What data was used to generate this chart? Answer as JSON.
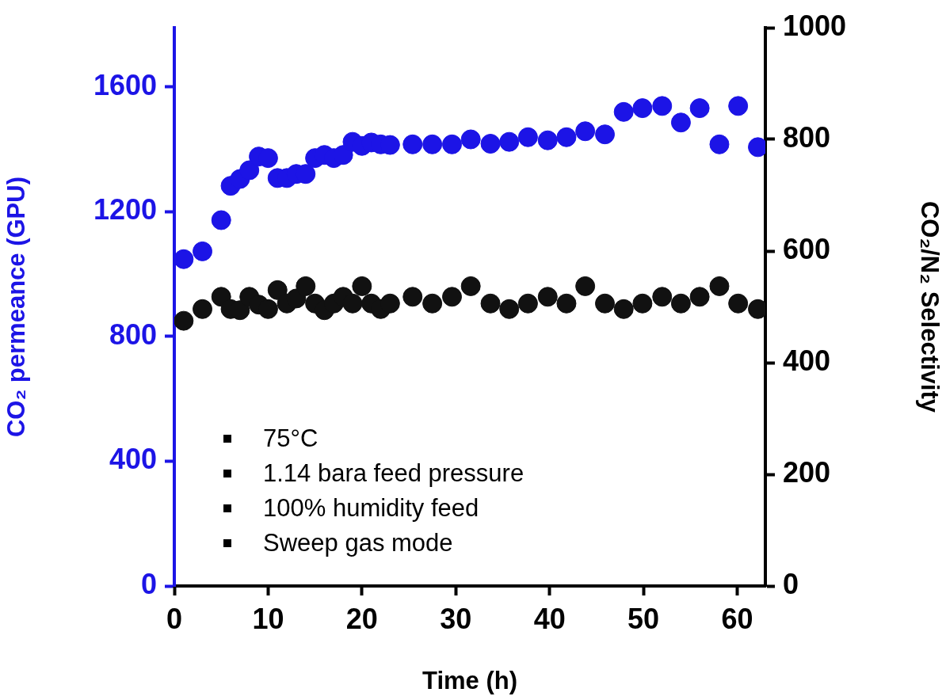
{
  "chart_data": {
    "type": "scatter",
    "xlabel": "Time (h)",
    "ylabel": "CO₂ permeance (GPU)",
    "y2label": "CO₂/N₂ Selectivity",
    "x": [
      1,
      3,
      5,
      6,
      7,
      8,
      9,
      10,
      11,
      12,
      13,
      14,
      15,
      16,
      17,
      18,
      19,
      20,
      21,
      22,
      23,
      25.4,
      27.5,
      29.6,
      31.6,
      33.7,
      35.7,
      37.7,
      39.8,
      41.8,
      43.8,
      45.9,
      47.9,
      49.9,
      52,
      54,
      56,
      58.1,
      60.1,
      62.2
    ],
    "series": [
      {
        "color": "#1c14e6",
        "values": [
          1048,
          1073,
          1173,
          1283,
          1305,
          1333,
          1377,
          1372,
          1308,
          1308,
          1321,
          1321,
          1372,
          1382,
          1372,
          1382,
          1424,
          1411,
          1422,
          1416,
          1414,
          1416,
          1416,
          1416,
          1432,
          1418,
          1424,
          1439,
          1429,
          1439,
          1458,
          1448,
          1520,
          1532,
          1539,
          1486,
          1532,
          1416,
          1539,
          1407
        ]
      },
      {
        "color": "#111111",
        "axis": "y2",
        "values": [
          475,
          496,
          518,
          496,
          494,
          518,
          504,
          496,
          530,
          506,
          515,
          537,
          506,
          494,
          506,
          518,
          506,
          537,
          506,
          496,
          506,
          518,
          506,
          518,
          537,
          506,
          496,
          506,
          518,
          506,
          537,
          506,
          496,
          506,
          518,
          506,
          518,
          537,
          506,
          496
        ]
      }
    ],
    "xlim": [
      0,
      63
    ],
    "xticks": [
      0,
      10,
      20,
      30,
      40,
      50,
      60
    ],
    "ylim": [
      0,
      1790
    ],
    "yticks": [
      0,
      400,
      800,
      1200,
      1600
    ],
    "y2lim": [
      0,
      1000
    ],
    "y2ticks": [
      0,
      200,
      400,
      600,
      800,
      1000
    ],
    "marker": "circle",
    "legend": false,
    "annotations": [
      "75°C",
      "1.14 bara feed pressure",
      "100% humidity feed",
      "Sweep gas mode"
    ]
  }
}
